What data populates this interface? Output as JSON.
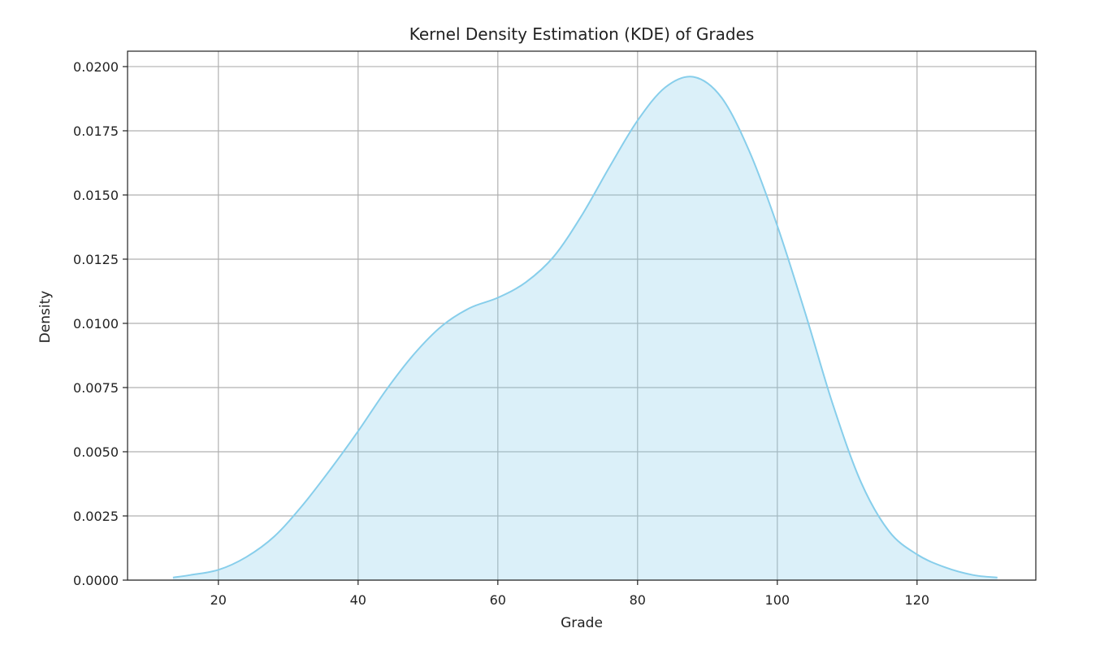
{
  "chart_data": {
    "type": "area",
    "title": "Kernel Density Estimation (KDE) of Grades",
    "xlabel": "Grade",
    "ylabel": "Density",
    "xlim": [
      7,
      137
    ],
    "ylim": [
      0,
      0.0206
    ],
    "grid": true,
    "legend": "none",
    "x_ticks": [
      20,
      40,
      60,
      80,
      100,
      120
    ],
    "x_tick_labels": [
      "20",
      "40",
      "60",
      "80",
      "100",
      "120"
    ],
    "y_ticks": [
      0,
      0.0025,
      0.005,
      0.0075,
      0.01,
      0.0125,
      0.015,
      0.0175,
      0.02
    ],
    "y_tick_labels": [
      "0.0000",
      "0.0025",
      "0.0050",
      "0.0075",
      "0.0100",
      "0.0125",
      "0.0150",
      "0.0175",
      "0.0200"
    ],
    "series": [
      {
        "x": [
          13.5,
          16,
          20,
          24,
          28,
          32,
          36,
          40,
          44,
          48,
          52,
          56,
          60,
          64,
          68,
          72,
          76,
          80,
          84,
          88,
          92,
          96,
          100,
          104,
          108,
          112,
          116,
          120,
          124,
          128,
          131.5
        ],
        "values": [
          0.0001,
          0.0002,
          0.0004,
          0.0009,
          0.0017,
          0.0029,
          0.0043,
          0.0058,
          0.0074,
          0.0088,
          0.0099,
          0.0106,
          0.011,
          0.0116,
          0.0126,
          0.0142,
          0.0161,
          0.0179,
          0.0192,
          0.0196,
          0.0188,
          0.0167,
          0.0138,
          0.0104,
          0.0068,
          0.0038,
          0.0019,
          0.001,
          0.0005,
          0.0002,
          0.0001
        ],
        "line_color": "#87ceeb",
        "fill_color": "#87ceeb",
        "fill_opacity": 0.3
      }
    ]
  },
  "colors": {
    "grid": "#b0b0b0",
    "axis": "#222222",
    "background": "#ffffff"
  }
}
